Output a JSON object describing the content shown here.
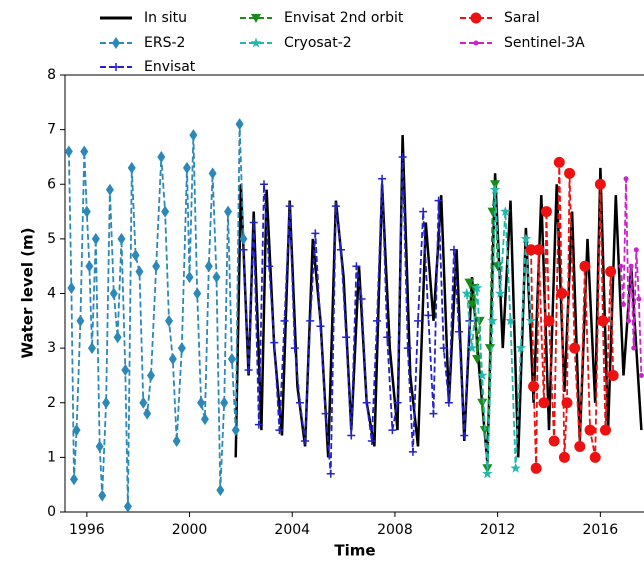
{
  "chart_data": {
    "type": "line",
    "xlabel": "Time",
    "ylabel": "Water level (m)",
    "xlim": [
      1995.15,
      2017.7
    ],
    "xticks": [
      1996,
      2000,
      2004,
      2008,
      2012,
      2016
    ],
    "ylim": [
      0,
      8
    ],
    "yticks": [
      0,
      1,
      2,
      3,
      4,
      5,
      6,
      7,
      8
    ],
    "series": [
      {
        "name": "In situ",
        "color": "#000000",
        "marker": "none",
        "dashed": false,
        "x": [
          2001.8,
          2002.0,
          2002.3,
          2002.5,
          2002.8,
          2003.0,
          2003.3,
          2003.6,
          2003.9,
          2004.2,
          2004.5,
          2004.8,
          2005.1,
          2005.4,
          2005.7,
          2006.0,
          2006.3,
          2006.6,
          2006.9,
          2007.2,
          2007.5,
          2007.8,
          2008.1,
          2008.3,
          2008.6,
          2008.9,
          2009.2,
          2009.5,
          2009.8,
          2010.1,
          2010.4,
          2010.7,
          2011.0,
          2011.3,
          2011.6,
          2011.9,
          2012.2,
          2012.5,
          2012.8,
          2013.1,
          2013.4,
          2013.7,
          2014.0,
          2014.3,
          2014.6,
          2014.9,
          2015.2,
          2015.5,
          2015.8,
          2016.0,
          2016.3,
          2016.6,
          2016.9,
          2017.2,
          2017.6
        ],
        "values": [
          1.0,
          6.0,
          2.5,
          5.5,
          1.5,
          5.9,
          3.0,
          1.4,
          5.7,
          2.3,
          1.2,
          5.0,
          3.5,
          1.0,
          5.7,
          4.3,
          1.5,
          4.5,
          2.0,
          1.2,
          6.0,
          3.0,
          1.5,
          6.9,
          2.5,
          1.2,
          5.3,
          3.5,
          5.8,
          2.0,
          4.8,
          1.3,
          4.3,
          2.5,
          0.9,
          6.2,
          3.0,
          5.7,
          1.0,
          5.2,
          2.0,
          5.8,
          1.5,
          6.0,
          2.2,
          5.5,
          1.3,
          5.0,
          2.0,
          6.3,
          1.5,
          5.8,
          2.5,
          4.5,
          1.5
        ]
      },
      {
        "name": "ERS-2",
        "color": "#2b88b8",
        "marker": "diamond",
        "dashed": true,
        "x": [
          1995.3,
          1995.4,
          1995.5,
          1995.6,
          1995.75,
          1995.9,
          1996.0,
          1996.1,
          1996.2,
          1996.35,
          1996.5,
          1996.6,
          1996.75,
          1996.9,
          1997.05,
          1997.2,
          1997.35,
          1997.5,
          1997.6,
          1997.75,
          1997.9,
          1998.05,
          1998.2,
          1998.35,
          1998.5,
          1998.7,
          1998.9,
          1999.05,
          1999.2,
          1999.35,
          1999.5,
          1999.7,
          1999.9,
          2000.0,
          2000.15,
          2000.3,
          2000.45,
          2000.6,
          2000.75,
          2000.9,
          2001.05,
          2001.2,
          2001.35,
          2001.5,
          2001.65,
          2001.8,
          2001.95,
          2002.1
        ],
        "values": [
          6.6,
          4.1,
          0.6,
          1.5,
          3.5,
          6.6,
          5.5,
          4.5,
          3.0,
          5.0,
          1.2,
          0.3,
          2.0,
          5.9,
          4.0,
          3.2,
          5.0,
          2.6,
          0.1,
          6.3,
          4.7,
          4.4,
          2.0,
          1.8,
          2.5,
          4.5,
          6.5,
          5.5,
          3.5,
          2.8,
          1.3,
          3.0,
          6.3,
          4.3,
          6.9,
          4.0,
          2.0,
          1.7,
          4.5,
          6.2,
          4.3,
          0.4,
          2.0,
          5.5,
          2.8,
          1.5,
          7.1,
          5.0
        ]
      },
      {
        "name": "Envisat",
        "color": "#2222cc",
        "marker": "plus",
        "dashed": true,
        "x": [
          2002.1,
          2002.3,
          2002.5,
          2002.7,
          2002.9,
          2003.1,
          2003.3,
          2003.5,
          2003.7,
          2003.9,
          2004.1,
          2004.3,
          2004.5,
          2004.7,
          2004.9,
          2005.1,
          2005.3,
          2005.5,
          2005.7,
          2005.9,
          2006.1,
          2006.3,
          2006.5,
          2006.7,
          2006.9,
          2007.1,
          2007.3,
          2007.5,
          2007.7,
          2007.9,
          2008.1,
          2008.3,
          2008.5,
          2008.7,
          2008.9,
          2009.1,
          2009.3,
          2009.5,
          2009.7,
          2009.9,
          2010.1,
          2010.3,
          2010.5,
          2010.7,
          2010.9
        ],
        "values": [
          4.8,
          2.6,
          5.3,
          1.6,
          6.0,
          4.5,
          3.1,
          1.5,
          3.5,
          5.6,
          3.0,
          2.0,
          1.3,
          3.5,
          5.1,
          3.4,
          1.8,
          0.7,
          5.6,
          4.8,
          3.2,
          1.4,
          4.5,
          3.9,
          2.0,
          1.3,
          3.5,
          6.1,
          3.2,
          1.5,
          2.0,
          6.5,
          3.0,
          1.1,
          3.5,
          5.5,
          3.6,
          1.8,
          5.7,
          3.0,
          2.0,
          4.8,
          3.3,
          1.4,
          3.5
        ]
      },
      {
        "name": "Envisat 2nd orbit",
        "color": "#1a8a1a",
        "marker": "triangle",
        "dashed": true,
        "x": [
          2010.9,
          2011.0,
          2011.1,
          2011.2,
          2011.3,
          2011.4,
          2011.5,
          2011.6,
          2011.7,
          2011.8,
          2011.9,
          2012.0
        ],
        "values": [
          4.2,
          3.8,
          4.1,
          2.8,
          3.5,
          2.0,
          1.5,
          0.8,
          3.0,
          5.5,
          6.0,
          4.5
        ]
      },
      {
        "name": "Cryosat-2",
        "color": "#22b8b0",
        "marker": "star",
        "dashed": true,
        "x": [
          2010.8,
          2011.0,
          2011.2,
          2011.4,
          2011.6,
          2011.8,
          2011.9,
          2012.1,
          2012.3,
          2012.5,
          2012.7,
          2012.9,
          2013.1,
          2013.3
        ],
        "values": [
          4.0,
          3.0,
          4.1,
          2.5,
          0.7,
          3.5,
          5.9,
          4.0,
          5.5,
          3.5,
          0.8,
          3.0,
          5.0,
          3.5
        ]
      },
      {
        "name": "Saral",
        "color": "#ee1111",
        "marker": "circle",
        "dashed": true,
        "x": [
          2013.3,
          2013.4,
          2013.5,
          2013.6,
          2013.8,
          2013.9,
          2014.0,
          2014.2,
          2014.4,
          2014.5,
          2014.6,
          2014.7,
          2014.8,
          2015.0,
          2015.2,
          2015.4,
          2015.6,
          2015.8,
          2016.0,
          2016.1,
          2016.2,
          2016.4,
          2016.5
        ],
        "values": [
          4.8,
          2.3,
          0.8,
          4.8,
          2.0,
          5.5,
          3.5,
          1.3,
          6.4,
          4.0,
          1.0,
          2.0,
          6.2,
          3.0,
          1.2,
          4.5,
          1.5,
          1.0,
          6.0,
          3.5,
          1.5,
          4.4,
          2.5
        ]
      },
      {
        "name": "Sentinel-3A",
        "color": "#cc22cc",
        "marker": "dot",
        "dashed": true,
        "x": [
          2016.8,
          2016.9,
          2017.0,
          2017.1,
          2017.2,
          2017.3,
          2017.4,
          2017.5,
          2017.6
        ],
        "values": [
          4.5,
          3.8,
          6.1,
          3.5,
          4.5,
          3.0,
          4.8,
          3.9,
          2.5
        ]
      }
    ]
  }
}
